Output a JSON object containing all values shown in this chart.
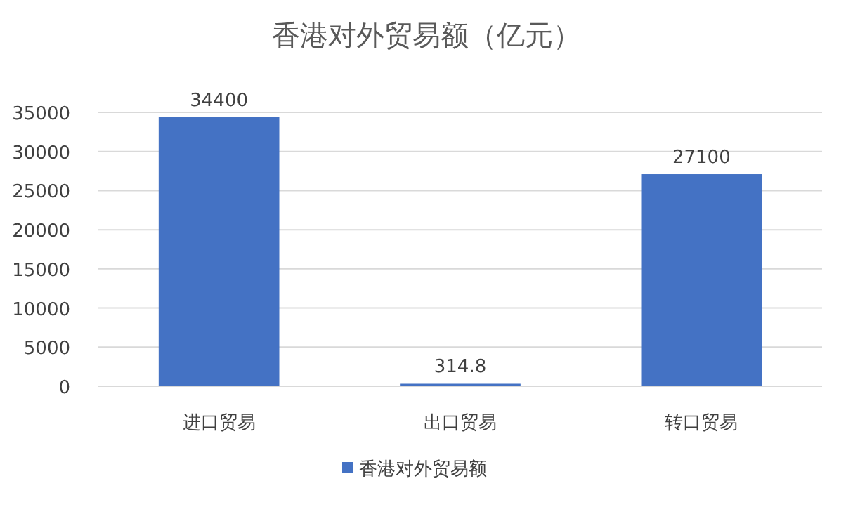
{
  "chart_data": {
    "type": "bar",
    "title": "香港对外贸易额（亿元）",
    "categories": [
      "进口贸易",
      "出口贸易",
      "转口贸易"
    ],
    "series": [
      {
        "name": "香港对外贸易额",
        "color": "#4472c4",
        "values": [
          34400,
          314.8,
          27100
        ]
      }
    ],
    "ylim": [
      0,
      35000
    ],
    "yticks": [
      0,
      5000,
      10000,
      15000,
      20000,
      25000,
      30000,
      35000
    ],
    "grid": "y",
    "legend": "bottom",
    "data_labels": true
  }
}
